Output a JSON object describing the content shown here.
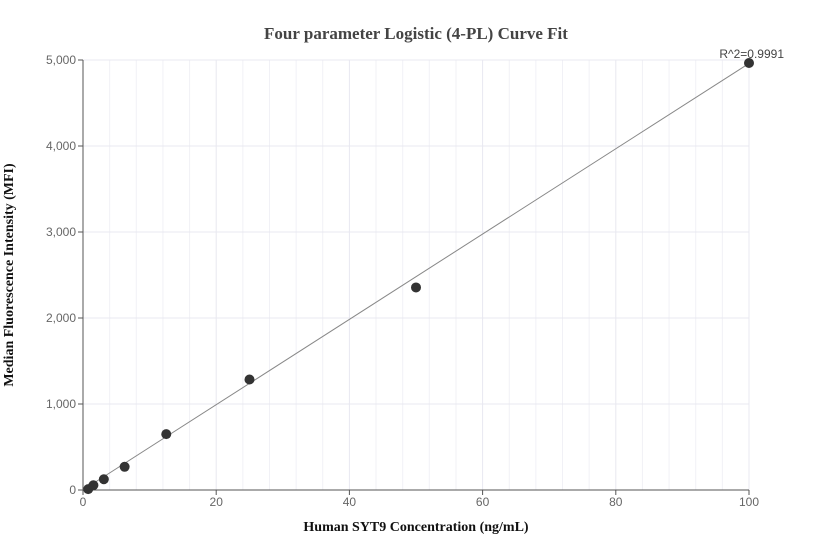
{
  "chart_data": {
    "type": "scatter",
    "title": "Four parameter Logistic (4-PL) Curve Fit",
    "xlabel": "Human SYT9 Concentration (ng/mL)",
    "ylabel": "Median Fluorescence Intensity (MFI)",
    "xlim": [
      0,
      100
    ],
    "ylim": [
      0,
      5000
    ],
    "x_ticks": [
      0,
      20,
      40,
      60,
      80,
      100
    ],
    "x_tick_labels": [
      "0",
      "20",
      "40",
      "60",
      "80",
      "100"
    ],
    "y_ticks": [
      0,
      1000,
      2000,
      3000,
      4000,
      5000
    ],
    "y_tick_labels": [
      "0",
      "1,000",
      "2,000",
      "3,000",
      "4,000",
      "5,000"
    ],
    "grid": true,
    "points": [
      {
        "x": 0.78,
        "y": 10
      },
      {
        "x": 1.56,
        "y": 55
      },
      {
        "x": 3.13,
        "y": 125
      },
      {
        "x": 6.25,
        "y": 270
      },
      {
        "x": 12.5,
        "y": 650
      },
      {
        "x": 25,
        "y": 1285
      },
      {
        "x": 50,
        "y": 2355
      },
      {
        "x": 100,
        "y": 4965
      }
    ],
    "fit_line": [
      {
        "x": 0,
        "y": 0
      },
      {
        "x": 100,
        "y": 4960
      }
    ],
    "annotation": "R^2=0.9991",
    "colors": {
      "points": "#333333",
      "fit_line": "#888888",
      "grid": "#e8e8f0",
      "axis": "#555555"
    }
  }
}
